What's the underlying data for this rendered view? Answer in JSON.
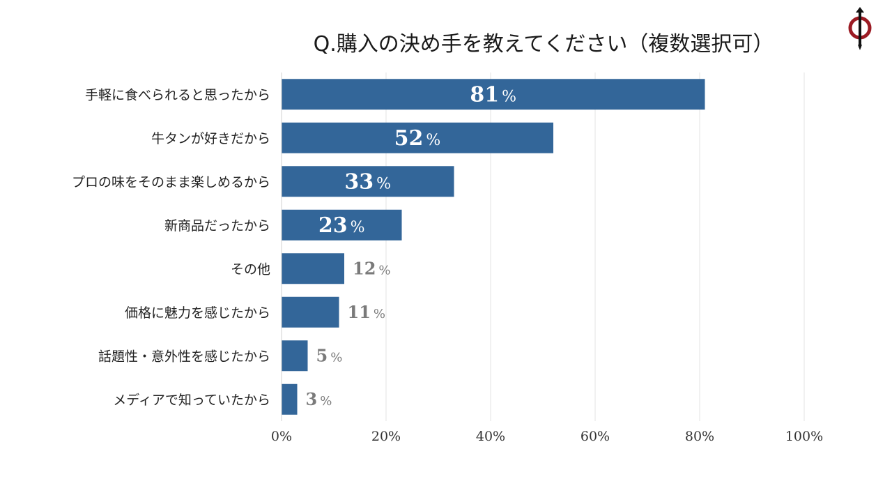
{
  "chart_data": {
    "type": "bar",
    "orientation": "horizontal",
    "title": "Q.購入の決め手を教えてください（複数選択可）",
    "categories": [
      "手軽に食べられると思ったから",
      "牛タンが好きだから",
      "プロの味をそのまま楽しめるから",
      "新商品だったから",
      "その他",
      "価格に魅力を感じたから",
      "話題性・意外性を感じたから",
      "メディアで知っていたから"
    ],
    "values": [
      81,
      52,
      33,
      23,
      12,
      11,
      5,
      3
    ],
    "value_suffix": "%",
    "xlim": [
      0,
      100
    ],
    "xticks": [
      0,
      20,
      40,
      60,
      80,
      100
    ],
    "xtick_labels": [
      "0%",
      "20%",
      "40%",
      "60%",
      "80%",
      "100%"
    ],
    "xlabel": "",
    "ylabel": "",
    "grid": true,
    "colors": {
      "bar": "#336699",
      "label_inside": "#ffffff",
      "label_outside": "#7a7a7a",
      "grid": "#e3e3e3",
      "logo_red": "#9b1b24"
    }
  },
  "logo": {
    "icon": "brand-logo-icon"
  }
}
